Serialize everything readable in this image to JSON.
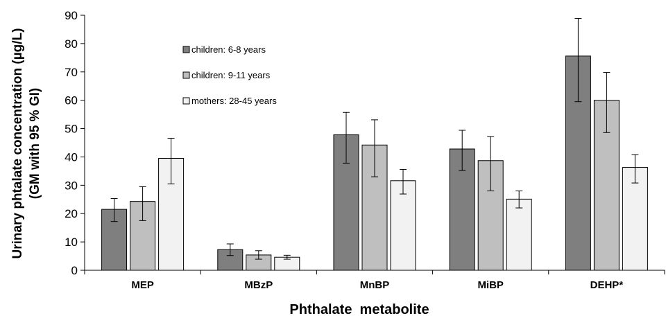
{
  "chart_data": {
    "type": "bar",
    "xlabel": "Phthalate  metabolite",
    "ylabel_line1": "Urinary phtalate concentration (µg/L)",
    "ylabel_line2": "(GM with 95 % GI)",
    "ylim": [
      0,
      90
    ],
    "yticks": [
      0,
      10,
      20,
      30,
      40,
      50,
      60,
      70,
      80,
      90
    ],
    "grid": false,
    "legend_position": "upper-left-inside",
    "categories": [
      "MEP",
      "MBzP",
      "MnBP",
      "MiBP",
      "DEHP*"
    ],
    "series": [
      {
        "name": "children: 6-8 years",
        "color": "#7f7f7f",
        "values": [
          21.5,
          7.3,
          47.8,
          42.8,
          75.6
        ],
        "err_low": [
          17.2,
          5.2,
          37.8,
          35.2,
          59.5
        ],
        "err_high": [
          25.3,
          9.3,
          55.7,
          49.4,
          88.9
        ]
      },
      {
        "name": "children: 9-11 years",
        "color": "#bfbfbf",
        "values": [
          24.3,
          5.4,
          44.2,
          38.7,
          60.0
        ],
        "err_low": [
          17.5,
          3.9,
          33.0,
          28.0,
          48.6
        ],
        "err_high": [
          29.5,
          6.9,
          53.1,
          47.2,
          69.8
        ]
      },
      {
        "name": "mothers: 28-45 years",
        "color": "#f2f2f2",
        "values": [
          39.5,
          4.6,
          31.6,
          25.1,
          36.3
        ],
        "err_low": [
          30.5,
          3.9,
          26.9,
          22.0,
          30.8
        ],
        "err_high": [
          46.6,
          5.3,
          35.6,
          28.0,
          40.8
        ]
      }
    ]
  }
}
